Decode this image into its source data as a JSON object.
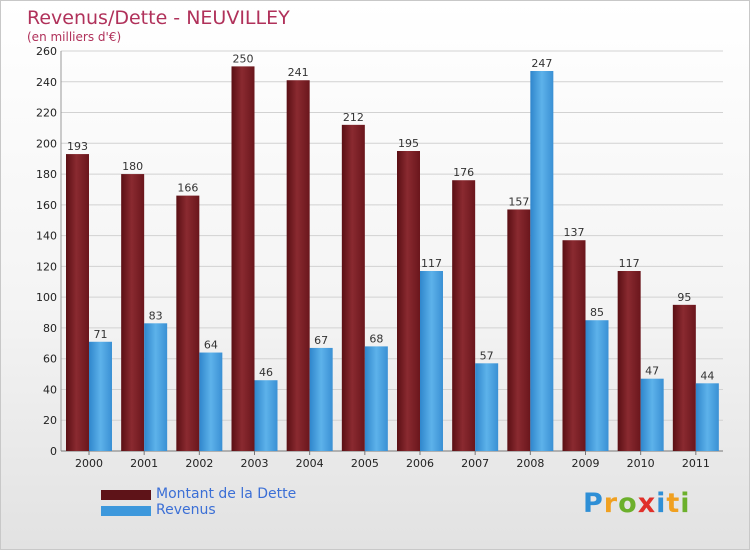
{
  "chart_data": {
    "type": "bar",
    "title": "Revenus/Dette - NEUVILLEY",
    "subtitle": "(en milliers d'€)",
    "categories": [
      "2000",
      "2001",
      "2002",
      "2003",
      "2004",
      "2005",
      "2006",
      "2007",
      "2008",
      "2009",
      "2010",
      "2011"
    ],
    "series": [
      {
        "name": "Montant de la Dette",
        "color": "#7a1f25",
        "values": [
          193,
          180,
          166,
          250,
          241,
          212,
          195,
          176,
          157,
          137,
          117,
          95
        ]
      },
      {
        "name": "Revenus",
        "color": "#4aa3e0",
        "values": [
          71,
          83,
          64,
          46,
          67,
          68,
          117,
          57,
          247,
          85,
          47,
          44
        ]
      }
    ],
    "ylim": [
      0,
      260
    ],
    "yticks": [
      0,
      20,
      40,
      60,
      80,
      100,
      120,
      140,
      160,
      180,
      200,
      220,
      240,
      260
    ],
    "grid": true,
    "legend": "bottom-left"
  },
  "logo": {
    "p": "P",
    "r": "r",
    "o": "o",
    "x": "x",
    "i": "i",
    "t": "t",
    "i2": "i"
  }
}
